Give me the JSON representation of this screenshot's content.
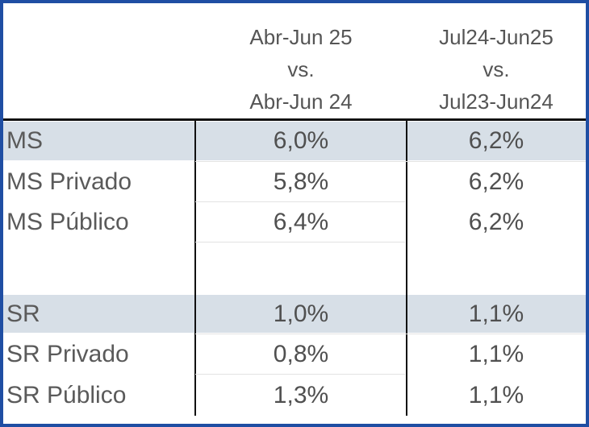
{
  "header": {
    "col1": [
      "Abr-Jun 25",
      "vs.",
      "Abr-Jun 24"
    ],
    "col2": [
      "Jul24-Jun25",
      "vs.",
      "Jul23-Jun24"
    ]
  },
  "rows": [
    {
      "label": "MS",
      "v1": "6,0%",
      "v2": "6,2%",
      "highlight": true
    },
    {
      "label": "MS Privado",
      "v1": "5,8%",
      "v2": "6,2%",
      "highlight": false
    },
    {
      "label": "MS Público",
      "v1": "6,4%",
      "v2": "6,2%",
      "highlight": false
    },
    {
      "label": "",
      "v1": "",
      "v2": "",
      "highlight": false
    },
    {
      "label": "SR",
      "v1": "1,0%",
      "v2": "1,1%",
      "highlight": true
    },
    {
      "label": "SR Privado",
      "v1": "0,8%",
      "v2": "1,1%",
      "highlight": false
    },
    {
      "label": "SR Público",
      "v1": "1,3%",
      "v2": "1,1%",
      "highlight": false
    }
  ],
  "colors": {
    "border": "#1f4ea3",
    "highlight_band": "#d7dfe7",
    "rule": "#111111",
    "text": "#505050"
  }
}
